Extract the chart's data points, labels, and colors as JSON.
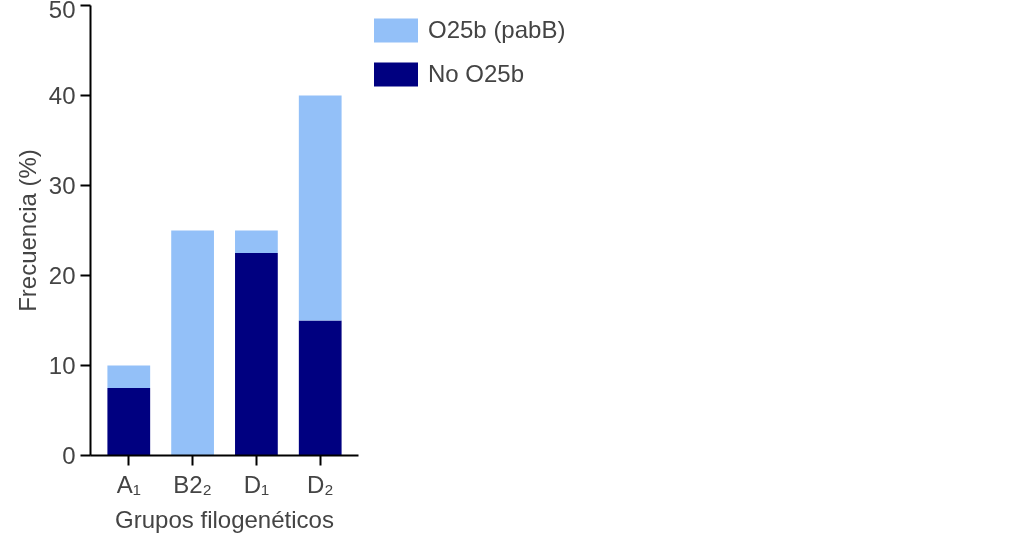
{
  "chart_data": {
    "type": "bar",
    "stacked": true,
    "xlabel": "Grupos filogenéticos",
    "ylabel": "Frecuencia (%)",
    "categories": [
      "A₁",
      "B2₂",
      "D₁",
      "D₂"
    ],
    "series": [
      {
        "name": "No O25b",
        "color": "#000080",
        "values": [
          7.5,
          0,
          22.5,
          15
        ]
      },
      {
        "name": "O25b (pabB)",
        "color": "#93c0f8",
        "values": [
          2.5,
          25,
          2.5,
          25
        ]
      }
    ],
    "ylim": [
      0,
      50
    ],
    "yticks": [
      0,
      10,
      20,
      30,
      40,
      50
    ],
    "grid": false,
    "legend": "top right"
  }
}
